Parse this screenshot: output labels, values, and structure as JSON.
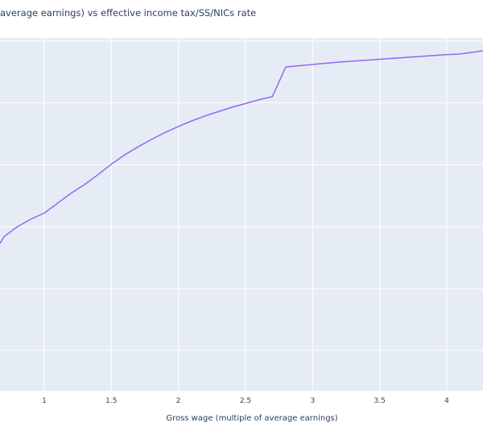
{
  "chart_data": {
    "type": "line",
    "title": "average earnings) vs effective income tax/SS/NICs rate",
    "xlabel": "Gross wage (multiple of average earnings)",
    "ylabel": "",
    "xlim": [
      0.67,
      4.27
    ],
    "ylim": [
      -0.65,
      5.05
    ],
    "x_ticks": [
      1,
      1.5,
      2,
      2.5,
      3,
      3.5,
      4
    ],
    "x_tick_labels": [
      "1",
      "1.5",
      "2",
      "2.5",
      "3",
      "3.5",
      "4"
    ],
    "y_gridlines": [
      0,
      1,
      2,
      3,
      4,
      5
    ],
    "grid": true,
    "series": [
      {
        "name": "",
        "color": "#9467f0",
        "x": [
          0.67,
          0.7,
          0.8,
          0.9,
          1.0,
          1.1,
          1.2,
          1.3,
          1.4,
          1.5,
          1.6,
          1.7,
          1.8,
          1.9,
          2.0,
          2.1,
          2.2,
          2.3,
          2.4,
          2.5,
          2.6,
          2.7,
          2.8,
          2.9,
          3.0,
          3.2,
          3.4,
          3.6,
          3.8,
          4.0,
          4.1,
          4.27
        ],
        "y": [
          1.73,
          1.84,
          2.0,
          2.12,
          2.22,
          2.38,
          2.54,
          2.68,
          2.84,
          3.01,
          3.16,
          3.29,
          3.41,
          3.52,
          3.62,
          3.71,
          3.79,
          3.86,
          3.93,
          3.99,
          4.05,
          4.1,
          4.58,
          4.6,
          4.62,
          4.66,
          4.69,
          4.72,
          4.75,
          4.78,
          4.79,
          4.84
        ]
      }
    ]
  }
}
